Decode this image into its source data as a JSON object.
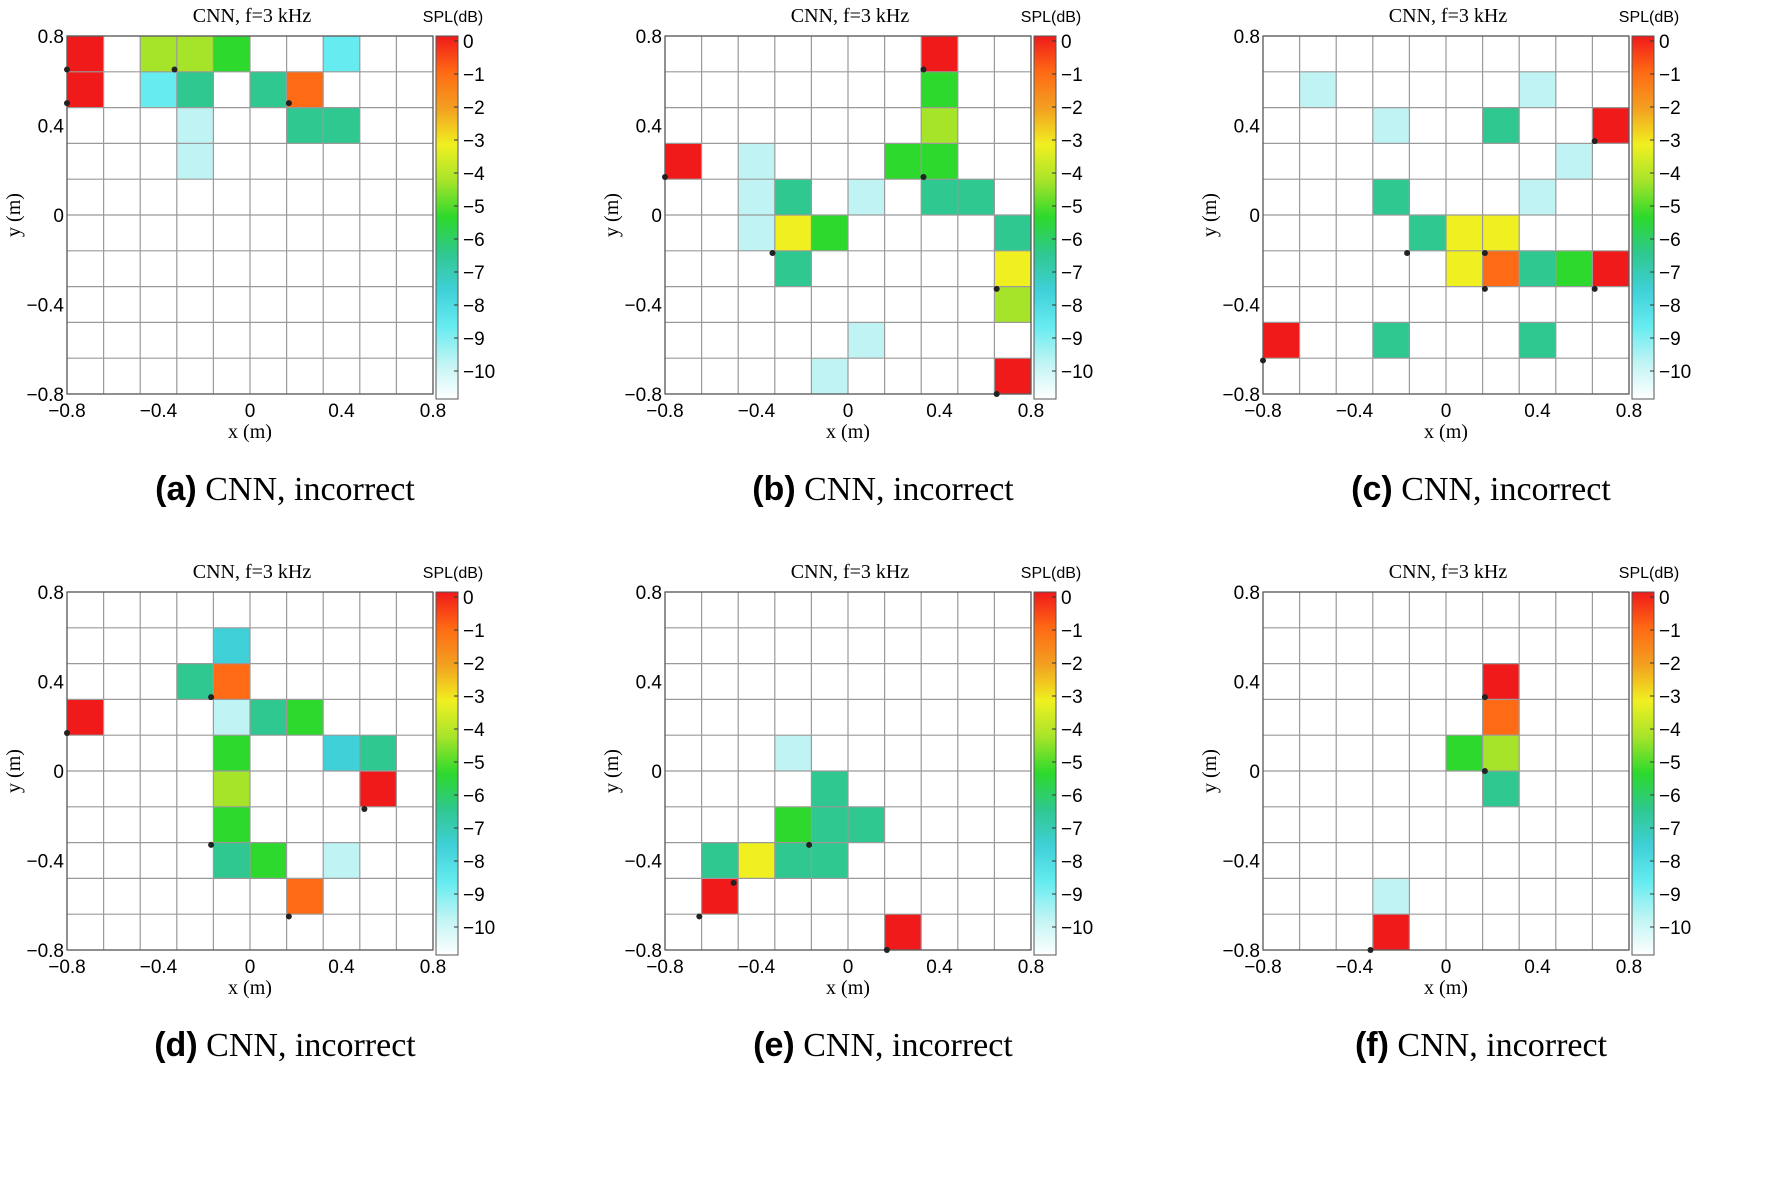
{
  "colorbar": {
    "label": "SPL(dB)",
    "ticks": [
      "0",
      "−1",
      "−2",
      "−3",
      "−4",
      "−5",
      "−6",
      "−7",
      "−8",
      "−9",
      "−10"
    ],
    "range": [
      -11,
      0
    ],
    "colormap": [
      "#ffffff",
      "#c0f4f4",
      "#66ecf0",
      "#3fd0d8",
      "#2fc890",
      "#2cd92c",
      "#a6e42a",
      "#f0f020",
      "#f3a020",
      "#ff6a14",
      "#f01a1a"
    ]
  },
  "axis_ticks": [
    "−0.8",
    "−0.4",
    "0",
    "0.4",
    "0.8"
  ],
  "chart_data": [
    {
      "type": "heatmap",
      "letter": "(a)",
      "caption": "CNN, incorrect",
      "title": "CNN, f=3 kHz",
      "xlabel": "x (m)",
      "ylabel": "y (m)",
      "xlim": [
        -0.8,
        0.8
      ],
      "ylim": [
        -0.8,
        0.8
      ],
      "grid": "10x10",
      "cells": [
        {
          "col": 0,
          "row": 0,
          "v": 0
        },
        {
          "col": 0,
          "row": 1,
          "v": 0
        },
        {
          "col": 2,
          "row": 0,
          "v": -4
        },
        {
          "col": 3,
          "row": 0,
          "v": -4
        },
        {
          "col": 4,
          "row": 0,
          "v": -5
        },
        {
          "col": 7,
          "row": 0,
          "v": -9
        },
        {
          "col": 2,
          "row": 1,
          "v": -9
        },
        {
          "col": 3,
          "row": 1,
          "v": -7
        },
        {
          "col": 5,
          "row": 1,
          "v": -7
        },
        {
          "col": 6,
          "row": 1,
          "v": -1.5
        },
        {
          "col": 3,
          "row": 2,
          "v": -9.5
        },
        {
          "col": 6,
          "row": 2,
          "v": -7
        },
        {
          "col": 7,
          "row": 2,
          "v": -7
        },
        {
          "col": 3,
          "row": 3,
          "v": -9.5
        }
      ],
      "sources": [
        [
          -0.8,
          0.65
        ],
        [
          -0.8,
          0.5
        ],
        [
          -0.33,
          0.65
        ],
        [
          0.17,
          0.5
        ]
      ]
    },
    {
      "type": "heatmap",
      "letter": "(b)",
      "caption": "CNN, incorrect",
      "title": "CNN, f=3 kHz",
      "xlabel": "x (m)",
      "ylabel": "y (m)",
      "xlim": [
        -0.8,
        0.8
      ],
      "ylim": [
        -0.8,
        0.8
      ],
      "grid": "10x10",
      "cells": [
        {
          "col": 7,
          "row": 0,
          "v": 0
        },
        {
          "col": 7,
          "row": 1,
          "v": -5
        },
        {
          "col": 7,
          "row": 2,
          "v": -4
        },
        {
          "col": 0,
          "row": 3,
          "v": 0
        },
        {
          "col": 2,
          "row": 3,
          "v": -9.5
        },
        {
          "col": 6,
          "row": 3,
          "v": -5
        },
        {
          "col": 7,
          "row": 3,
          "v": -5
        },
        {
          "col": 2,
          "row": 4,
          "v": -9.5
        },
        {
          "col": 3,
          "row": 4,
          "v": -7
        },
        {
          "col": 5,
          "row": 4,
          "v": -9.5
        },
        {
          "col": 7,
          "row": 4,
          "v": -7
        },
        {
          "col": 8,
          "row": 4,
          "v": -7
        },
        {
          "col": 2,
          "row": 5,
          "v": -9.5
        },
        {
          "col": 3,
          "row": 5,
          "v": -3.5
        },
        {
          "col": 4,
          "row": 5,
          "v": -5
        },
        {
          "col": 9,
          "row": 5,
          "v": -7
        },
        {
          "col": 3,
          "row": 6,
          "v": -7
        },
        {
          "col": 9,
          "row": 6,
          "v": -3.5
        },
        {
          "col": 9,
          "row": 7,
          "v": -4
        },
        {
          "col": 5,
          "row": 8,
          "v": -9.5
        },
        {
          "col": 4,
          "row": 9,
          "v": -9.5
        },
        {
          "col": 9,
          "row": 9,
          "v": 0
        }
      ],
      "sources": [
        [
          0.33,
          0.65
        ],
        [
          -0.8,
          0.17
        ],
        [
          0.33,
          0.17
        ],
        [
          -0.33,
          -0.17
        ],
        [
          0.65,
          -0.33
        ],
        [
          0.65,
          -0.8
        ]
      ]
    },
    {
      "type": "heatmap",
      "letter": "(c)",
      "caption": "CNN, incorrect",
      "title": "CNN, f=3 kHz",
      "xlabel": "x (m)",
      "ylabel": "y (m)",
      "xlim": [
        -0.8,
        0.8
      ],
      "ylim": [
        -0.8,
        0.8
      ],
      "grid": "10x10",
      "cells": [
        {
          "col": 1,
          "row": 1,
          "v": -9.5
        },
        {
          "col": 7,
          "row": 1,
          "v": -9.5
        },
        {
          "col": 3,
          "row": 2,
          "v": -9.5
        },
        {
          "col": 6,
          "row": 2,
          "v": -7
        },
        {
          "col": 9,
          "row": 2,
          "v": 0
        },
        {
          "col": 8,
          "row": 3,
          "v": -9.5
        },
        {
          "col": 3,
          "row": 4,
          "v": -7
        },
        {
          "col": 7,
          "row": 4,
          "v": -9.5
        },
        {
          "col": 4,
          "row": 5,
          "v": -7
        },
        {
          "col": 5,
          "row": 5,
          "v": -3.5
        },
        {
          "col": 6,
          "row": 5,
          "v": -3
        },
        {
          "col": 5,
          "row": 6,
          "v": -3.5
        },
        {
          "col": 6,
          "row": 6,
          "v": -1.5
        },
        {
          "col": 7,
          "row": 6,
          "v": -7
        },
        {
          "col": 8,
          "row": 6,
          "v": -5
        },
        {
          "col": 9,
          "row": 6,
          "v": 0
        },
        {
          "col": 0,
          "row": 8,
          "v": 0
        },
        {
          "col": 3,
          "row": 8,
          "v": -7
        },
        {
          "col": 7,
          "row": 8,
          "v": -7
        }
      ],
      "sources": [
        [
          0.65,
          0.33
        ],
        [
          -0.17,
          -0.17
        ],
        [
          0.17,
          -0.17
        ],
        [
          0.17,
          -0.33
        ],
        [
          0.65,
          -0.33
        ],
        [
          -0.8,
          -0.65
        ]
      ]
    },
    {
      "type": "heatmap",
      "letter": "(d)",
      "caption": "CNN, incorrect",
      "title": "CNN, f=3 kHz",
      "xlabel": "x (m)",
      "ylabel": "y (m)",
      "xlim": [
        -0.8,
        0.8
      ],
      "ylim": [
        -0.8,
        0.8
      ],
      "grid": "10x10",
      "cells": [
        {
          "col": 4,
          "row": 1,
          "v": -7.5
        },
        {
          "col": 3,
          "row": 2,
          "v": -7
        },
        {
          "col": 4,
          "row": 2,
          "v": -1.5
        },
        {
          "col": 0,
          "row": 3,
          "v": 0
        },
        {
          "col": 4,
          "row": 3,
          "v": -9.5
        },
        {
          "col": 5,
          "row": 3,
          "v": -7
        },
        {
          "col": 6,
          "row": 3,
          "v": -5
        },
        {
          "col": 4,
          "row": 4,
          "v": -5
        },
        {
          "col": 7,
          "row": 4,
          "v": -7.5
        },
        {
          "col": 8,
          "row": 4,
          "v": -7
        },
        {
          "col": 4,
          "row": 5,
          "v": -4
        },
        {
          "col": 8,
          "row": 5,
          "v": 0
        },
        {
          "col": 4,
          "row": 6,
          "v": -5
        },
        {
          "col": 4,
          "row": 7,
          "v": -7
        },
        {
          "col": 5,
          "row": 7,
          "v": -5
        },
        {
          "col": 7,
          "row": 7,
          "v": -9.5
        },
        {
          "col": 6,
          "row": 8,
          "v": -1.5
        }
      ],
      "sources": [
        [
          -0.17,
          0.33
        ],
        [
          -0.8,
          0.17
        ],
        [
          0.5,
          -0.17
        ],
        [
          -0.17,
          -0.33
        ],
        [
          0.17,
          -0.65
        ]
      ]
    },
    {
      "type": "heatmap",
      "letter": "(e)",
      "caption": "CNN, incorrect",
      "title": "CNN, f=3 kHz",
      "xlabel": "x (m)",
      "ylabel": "y (m)",
      "xlim": [
        -0.8,
        0.8
      ],
      "ylim": [
        -0.8,
        0.8
      ],
      "grid": "10x10",
      "cells": [
        {
          "col": 3,
          "row": 4,
          "v": -9.5
        },
        {
          "col": 4,
          "row": 5,
          "v": -7
        },
        {
          "col": 3,
          "row": 6,
          "v": -5
        },
        {
          "col": 4,
          "row": 6,
          "v": -7
        },
        {
          "col": 5,
          "row": 6,
          "v": -7
        },
        {
          "col": 1,
          "row": 7,
          "v": -7
        },
        {
          "col": 2,
          "row": 7,
          "v": -3.5
        },
        {
          "col": 3,
          "row": 7,
          "v": -7
        },
        {
          "col": 4,
          "row": 7,
          "v": -7
        },
        {
          "col": 1,
          "row": 8,
          "v": 0
        },
        {
          "col": 6,
          "row": 9,
          "v": 0
        }
      ],
      "sources": [
        [
          -0.17,
          -0.33
        ],
        [
          -0.5,
          -0.5
        ],
        [
          -0.65,
          -0.65
        ],
        [
          0.17,
          -0.8
        ]
      ]
    },
    {
      "type": "heatmap",
      "letter": "(f)",
      "caption": "CNN, incorrect",
      "title": "CNN, f=3 kHz",
      "xlabel": "x (m)",
      "ylabel": "y (m)",
      "xlim": [
        -0.8,
        0.8
      ],
      "ylim": [
        -0.8,
        0.8
      ],
      "grid": "10x10",
      "cells": [
        {
          "col": 6,
          "row": 2,
          "v": 0
        },
        {
          "col": 6,
          "row": 3,
          "v": -1.5
        },
        {
          "col": 5,
          "row": 4,
          "v": -5
        },
        {
          "col": 6,
          "row": 4,
          "v": -4
        },
        {
          "col": 6,
          "row": 5,
          "v": -7
        },
        {
          "col": 3,
          "row": 8,
          "v": -9.5
        },
        {
          "col": 3,
          "row": 9,
          "v": 0
        }
      ],
      "sources": [
        [
          0.17,
          0.33
        ],
        [
          0.17,
          0
        ],
        [
          -0.33,
          -0.8
        ]
      ]
    }
  ]
}
